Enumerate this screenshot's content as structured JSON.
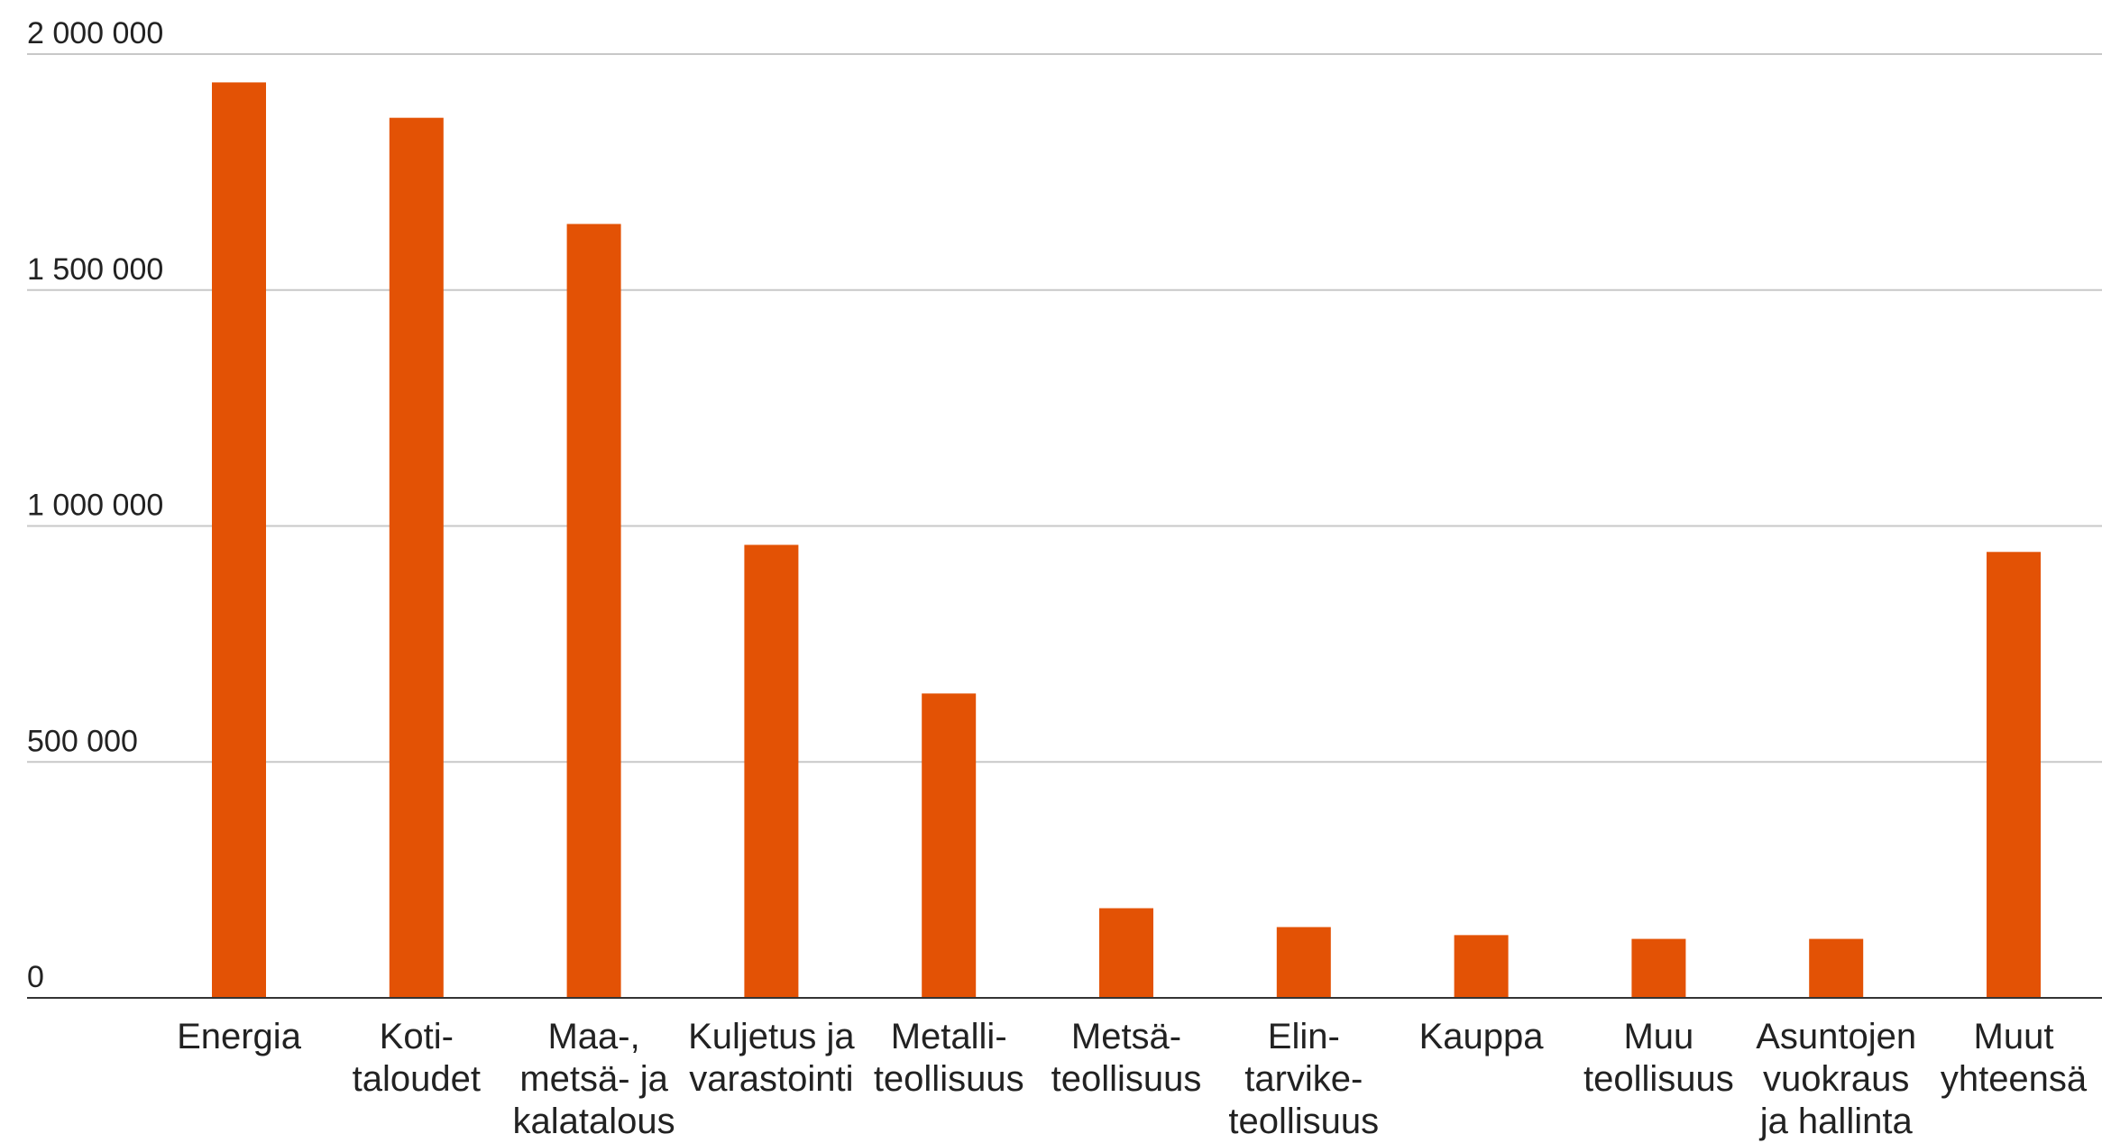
{
  "chart_data": {
    "type": "bar",
    "title": "",
    "xlabel": "",
    "ylabel": "",
    "ylim": [
      0,
      2000000
    ],
    "yticks": [
      0,
      500000,
      1000000,
      1500000,
      2000000
    ],
    "ytick_labels": [
      "0",
      "500 000",
      "1 000 000",
      "1 500 000",
      "2 000 000"
    ],
    "grid": true,
    "bar_color": "#E35205",
    "categories": [
      [
        "Energia"
      ],
      [
        "Koti-",
        "taloudet"
      ],
      [
        "Maa-,",
        "metsä- ja",
        "kalatalous"
      ],
      [
        "Kuljetus ja",
        "varastointi"
      ],
      [
        "Metalli-",
        "teollisuus"
      ],
      [
        "Metsä-",
        "teollisuus"
      ],
      [
        "Elin-",
        "tarvike-",
        "teollisuus"
      ],
      [
        "Kauppa"
      ],
      [
        "Muu",
        "teollisuus"
      ],
      [
        "Asuntojen",
        "vuokraus",
        "ja hallinta"
      ],
      [
        "Muut",
        "yhteensä"
      ]
    ],
    "values": [
      1940000,
      1865000,
      1640000,
      960000,
      645000,
      190000,
      150000,
      133000,
      125000,
      125000,
      945000
    ]
  }
}
